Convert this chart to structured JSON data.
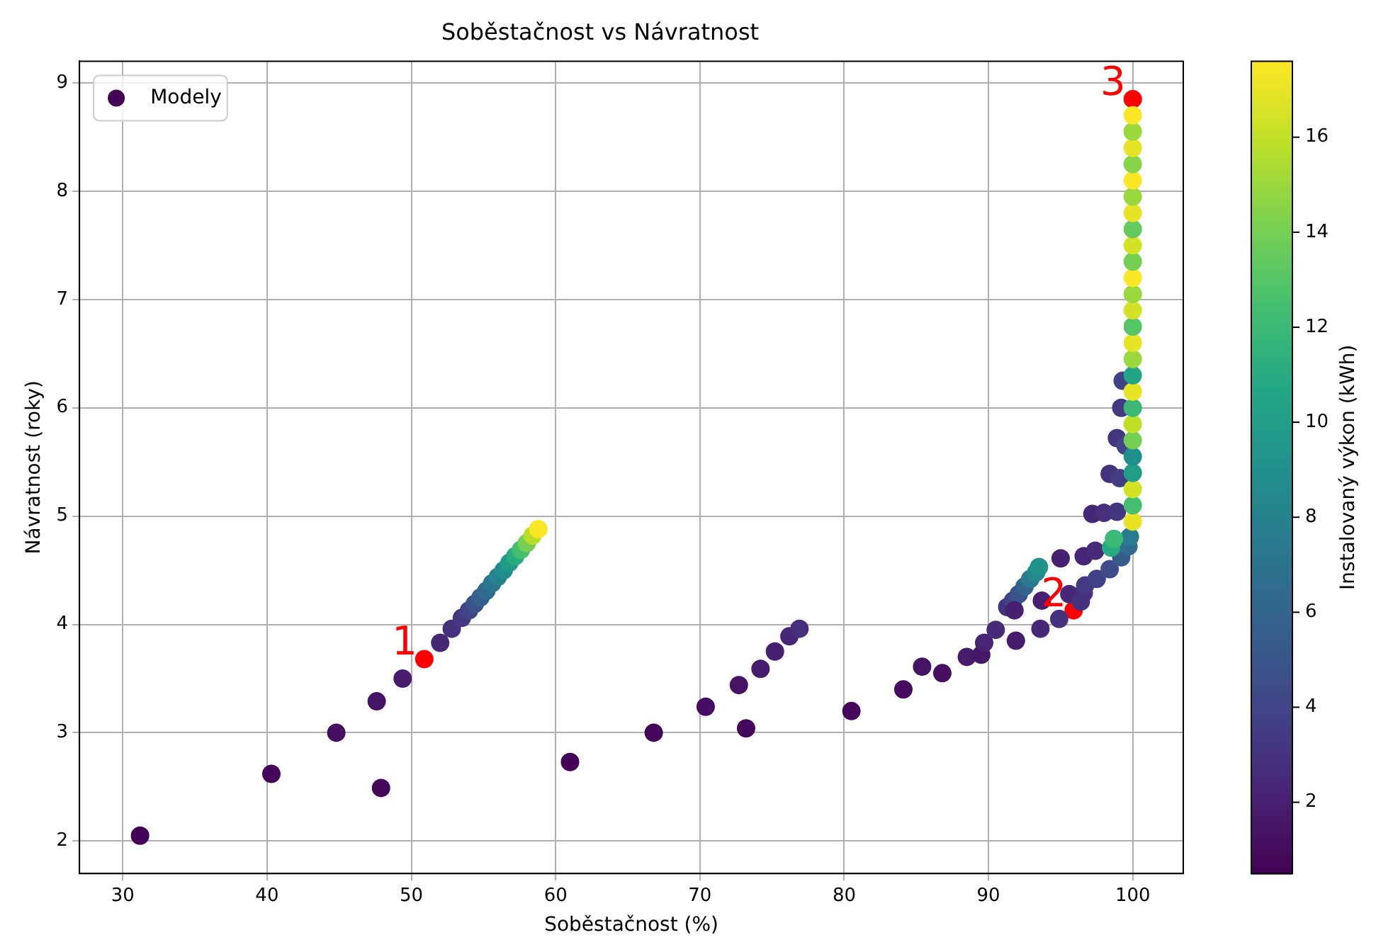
{
  "chart_data": {
    "type": "scatter",
    "title": "Soběstačnost vs Návratnost",
    "xlabel": "Soběstačnost (%)",
    "ylabel": "Návratnost (roky)",
    "clabel": "Instalovaný výkon (kWh)",
    "xlim": [
      27,
      103.5
    ],
    "ylim": [
      1.7,
      9.2
    ],
    "xticks": [
      30,
      40,
      50,
      60,
      70,
      80,
      90,
      100
    ],
    "yticks": [
      2,
      3,
      4,
      5,
      6,
      7,
      8,
      9
    ],
    "clim": [
      0.5,
      17.6
    ],
    "cticks": [
      2,
      4,
      6,
      8,
      10,
      12,
      14,
      16
    ],
    "grid": true,
    "legend": "top left",
    "marker": "circle",
    "series": [
      {
        "name": "Modely",
        "colors": [
          "#440356",
          "#45075a",
          "#460f62",
          "#461465",
          "#45075a",
          "#471c6d",
          "#472877",
          "#45317c",
          "#433a81",
          "#404587",
          "#3b528a",
          "#355f8d",
          "#306a8d",
          "#2b768e",
          "#26828d",
          "#228d8c",
          "#219b88",
          "#27ab81",
          "#45bf6f",
          "#74cf54",
          "#bade26",
          "#f9e725",
          "#440356",
          "#45075a",
          "#460f62",
          "#461465",
          "#45075a",
          "#471c6d",
          "#482071",
          "#472877",
          "#462f7b",
          "#45075a",
          "#450b5e",
          "#461465",
          "#460f62",
          "#471c6d",
          "#471769",
          "#482475",
          "#462b79",
          "#471c6d",
          "#472877",
          "#45337d",
          "#45337d",
          "#404587",
          "#39558b",
          "#33648d",
          "#297a8e",
          "#24898d",
          "#21938b",
          "#482071",
          "#482071",
          "#482071",
          "#482475",
          "#462b79",
          "#472877",
          "#462f7b",
          "#44377f",
          "#472877",
          "#462f7b",
          "#45337d",
          "#433a81",
          "#414286",
          "#3e4c89",
          "#365b8d",
          "#2f6c8d",
          "#297c8e",
          "#27ab81",
          "#3bb975",
          "#45337d",
          "#423e83",
          "#44377f",
          "#404587",
          "#433a81",
          "#414286",
          "#e7e425",
          "#45bf6f",
          "#d4e226",
          "#229e88",
          "#21908c",
          "#74cf54",
          "#c1df26",
          "#3bb975",
          "#e7e425",
          "#22a585",
          "#9ad83d",
          "#e7e425",
          "#55c566",
          "#d4e226",
          "#9ad83d",
          "#f9e725",
          "#74cf54",
          "#d4e226",
          "#65ca5d",
          "#e7e425",
          "#9ad83d",
          "#f9e725",
          "#87d44a",
          "#e7e425",
          "#9ad83d",
          "#f9e725"
        ],
        "x": [
          31.2,
          40.3,
          44.8,
          47.6,
          47.9,
          49.4,
          52.0,
          52.8,
          53.5,
          54.0,
          54.4,
          54.8,
          55.2,
          55.6,
          56.0,
          56.4,
          56.8,
          57.2,
          57.6,
          58.0,
          58.4,
          58.8,
          61.0,
          66.8,
          70.4,
          72.7,
          73.2,
          74.2,
          75.2,
          76.2,
          76.9,
          80.5,
          84.1,
          85.4,
          86.8,
          88.5,
          89.5,
          89.7,
          90.5,
          91.9,
          93.6,
          94.9,
          91.3,
          91.7,
          92.1,
          92.5,
          92.9,
          93.3,
          93.5,
          91.8,
          93.7,
          95.0,
          96.6,
          97.4,
          97.2,
          98.0,
          98.9,
          95.6,
          96.6,
          96.4,
          96.7,
          97.5,
          98.4,
          99.2,
          99.7,
          99.8,
          98.5,
          98.7,
          98.4,
          99.1,
          98.9,
          99.5,
          99.2,
          99.3,
          100,
          100,
          100,
          100,
          100,
          100,
          100,
          100,
          100,
          100,
          100,
          100,
          100,
          100,
          100,
          100,
          100,
          100,
          100,
          100,
          100,
          100,
          100,
          100,
          100,
          100
        ],
        "values": [
          2.05,
          2.62,
          3.0,
          3.29,
          2.49,
          3.5,
          3.83,
          3.96,
          4.06,
          4.13,
          4.19,
          4.25,
          4.31,
          4.38,
          4.44,
          4.5,
          4.57,
          4.63,
          4.69,
          4.75,
          4.82,
          4.88,
          2.73,
          3.0,
          3.24,
          3.44,
          3.04,
          3.59,
          3.75,
          3.89,
          3.96,
          3.2,
          3.4,
          3.61,
          3.55,
          3.7,
          3.72,
          3.83,
          3.95,
          3.85,
          3.96,
          4.05,
          4.16,
          4.22,
          4.28,
          4.35,
          4.42,
          4.48,
          4.53,
          4.13,
          4.22,
          4.61,
          4.63,
          4.68,
          5.02,
          5.03,
          5.04,
          4.28,
          4.29,
          4.21,
          4.36,
          4.42,
          4.51,
          4.62,
          4.72,
          4.81,
          4.71,
          4.79,
          5.39,
          5.35,
          5.72,
          5.65,
          6.0,
          6.25,
          4.95,
          5.1,
          5.25,
          5.4,
          5.55,
          5.7,
          5.85,
          6.0,
          6.15,
          6.3,
          6.45,
          6.6,
          6.75,
          6.9,
          7.05,
          7.2,
          7.35,
          7.5,
          7.65,
          7.8,
          7.95,
          8.1,
          8.25,
          8.4,
          8.55,
          8.7
        ],
        "cvalues": [
          0.6,
          0.8,
          1.2,
          1.4,
          0.8,
          1.8,
          2.4,
          2.9,
          3.4,
          4.0,
          4.8,
          5.6,
          6.4,
          7.2,
          8.0,
          8.8,
          9.8,
          11.0,
          12.5,
          14.0,
          15.8,
          17.5,
          0.6,
          0.8,
          1.2,
          1.4,
          0.8,
          1.8,
          2.0,
          2.4,
          2.8,
          0.8,
          1.0,
          1.4,
          1.2,
          1.8,
          1.6,
          2.2,
          2.6,
          1.8,
          2.4,
          3.0,
          3.0,
          4.0,
          5.0,
          6.0,
          7.5,
          8.5,
          9.2,
          2.0,
          2.0,
          2.0,
          2.2,
          2.6,
          2.4,
          2.8,
          3.2,
          2.4,
          2.8,
          3.0,
          3.4,
          3.8,
          4.4,
          5.4,
          6.6,
          7.6,
          11.0,
          12.0,
          3.0,
          3.6,
          3.2,
          4.0,
          3.4,
          3.8,
          17.0,
          12.5,
          16.5,
          10.0,
          9.0,
          14.0,
          16.0,
          12.0,
          17.0,
          10.5,
          15.0,
          17.0,
          13.0,
          16.5,
          15.0,
          17.5,
          14.0,
          16.5,
          13.5,
          17.0,
          15.0,
          17.5,
          14.5,
          17.0,
          15.0,
          17.5
        ]
      },
      {
        "color": "#ff0000",
        "x": [
          50.9,
          95.9,
          100
        ],
        "values": [
          3.68,
          4.13,
          8.85
        ]
      }
    ],
    "annotations": [
      {
        "text": "1",
        "x": 50.9,
        "y": 3.68
      },
      {
        "text": "2",
        "x": 95.9,
        "y": 4.13
      },
      {
        "text": "3",
        "x": 100,
        "y": 8.85
      }
    ]
  }
}
